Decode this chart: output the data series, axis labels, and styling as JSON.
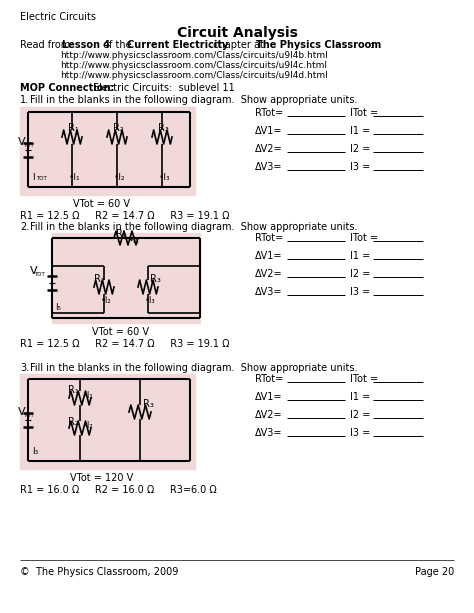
{
  "title": "Circuit Analysis",
  "header_left": "Electric Circuits",
  "read_from_plain": "Read from ",
  "read_from_bold": "Lesson 4",
  "read_from_mid": " of the ",
  "read_from_bold2": "Current Electricity",
  "read_from_end": " chapter at ",
  "read_from_bold3": "The Physics Classroom",
  "read_from_colon": ":",
  "urls": [
    "http://www.physicsclassroom.com/Class/circuits/u9l4b.html",
    "http://www.physicsclassroom.com/Class/circuits/u9l4c.html",
    "http://www.physicsclassroom.com/Class/circuits/u9l4d.html"
  ],
  "mop_label": "MOP Connection:",
  "mop_value": "Electric Circuits:  sublevel 11",
  "p1_num": "1.",
  "p1_text": "Fill in the blanks in the following diagram.  Show appropriate units.",
  "p1_vtot": "VTot = 60 V",
  "p1_rvals": "R1 = 12.5 Ω     R2 = 14.7 Ω     R3 = 19.1 Ω",
  "p2_num": "2.",
  "p2_text": "Fill in the blanks in the following diagram.  Show appropriate units.",
  "p2_vtot": "VTot = 60 V",
  "p2_rvals": "R1 = 12.5 Ω     R2 = 14.7 Ω     R3 = 19.1 Ω",
  "p3_num": "3.",
  "p3_text": "Fill in the blanks in the following diagram.  Show appropriate units.",
  "p3_vtot": "VTot = 120 V",
  "p3_rvals": "R1 = 16.0 Ω     R2 = 16.0 Ω     R3=6.0 Ω",
  "fields": [
    "RTot=",
    "ΔV1=",
    "ΔV2=",
    "ΔV3="
  ],
  "fields_right_p1": [
    "ITot =",
    "I1 =",
    "I2 =",
    "I3 ="
  ],
  "fields_right_p2": [
    "ITot =",
    "I1 =",
    "I2 =",
    "I3 ="
  ],
  "fields_right_p3": [
    "ITot =",
    "I1 =",
    "I2 =",
    "I3 ="
  ],
  "footer_left": "©  The Physics Classroom, 2009",
  "footer_right": "Page 20",
  "bg_color": "#f2d9d9",
  "line_color": "#000000",
  "text_color": "#000000"
}
